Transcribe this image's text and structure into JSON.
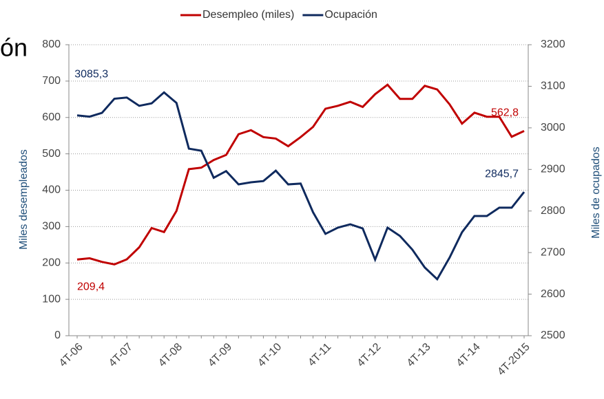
{
  "chart_data": {
    "type": "line",
    "title": "ón",
    "y_label": "Miles desempleados",
    "y2_label": "Miles de ocupados",
    "categories": [
      "4T-06",
      null,
      null,
      null,
      "4T-07",
      null,
      null,
      null,
      "4T-08",
      null,
      null,
      null,
      "4T-09",
      null,
      null,
      null,
      "4T-10",
      null,
      null,
      null,
      "4T-11",
      null,
      null,
      null,
      "4T-12",
      null,
      null,
      null,
      "4T-13",
      null,
      null,
      null,
      "4T-14",
      null,
      null,
      null,
      "4T-2015"
    ],
    "series": [
      {
        "name": "Desempleo (miles)",
        "color": "#c00000",
        "axis": "y",
        "values": [
          209.4,
          213,
          203,
          196,
          210,
          243,
          296,
          285,
          343,
          458,
          462,
          483,
          497,
          554,
          565,
          546,
          542,
          521,
          546,
          574,
          624,
          632,
          643,
          629,
          664,
          690,
          651,
          651,
          687,
          677,
          636,
          583,
          613,
          602,
          602,
          547,
          562.8
        ],
        "value_labels": [
          "209,4",
          null,
          null,
          null,
          null,
          null,
          null,
          null,
          null,
          null,
          null,
          null,
          null,
          null,
          null,
          null,
          null,
          null,
          null,
          null,
          null,
          null,
          null,
          null,
          null,
          null,
          null,
          null,
          null,
          null,
          null,
          null,
          null,
          null,
          null,
          null,
          "562,8"
        ]
      },
      {
        "name": "Ocupación",
        "color": "#0f2a5e",
        "axis": "y2",
        "values": [
          3030,
          3027,
          3036,
          3070,
          3073,
          3053,
          3059,
          3085.3,
          3060,
          2950,
          2945,
          2880,
          2896,
          2864,
          2869,
          2872,
          2897,
          2864,
          2866,
          2797,
          2745,
          2760,
          2768,
          2758,
          2683,
          2760,
          2740,
          2707,
          2664,
          2636,
          2688,
          2749,
          2788,
          2788,
          2808,
          2808,
          2845.7
        ],
        "value_labels": [
          null,
          null,
          null,
          null,
          null,
          null,
          null,
          "3085,3",
          null,
          null,
          null,
          null,
          null,
          null,
          null,
          null,
          null,
          null,
          null,
          null,
          null,
          null,
          null,
          null,
          null,
          null,
          null,
          null,
          null,
          null,
          null,
          null,
          null,
          null,
          null,
          null,
          "2845,7"
        ]
      }
    ],
    "ylim": [
      0,
      800
    ],
    "yticks": [
      0,
      100,
      200,
      300,
      400,
      500,
      600,
      700,
      800
    ],
    "y2lim": [
      2500,
      3200
    ],
    "y2ticks": [
      2500,
      2600,
      2700,
      2800,
      2900,
      3000,
      3100,
      3200
    ],
    "grid": true,
    "legend": "top"
  }
}
